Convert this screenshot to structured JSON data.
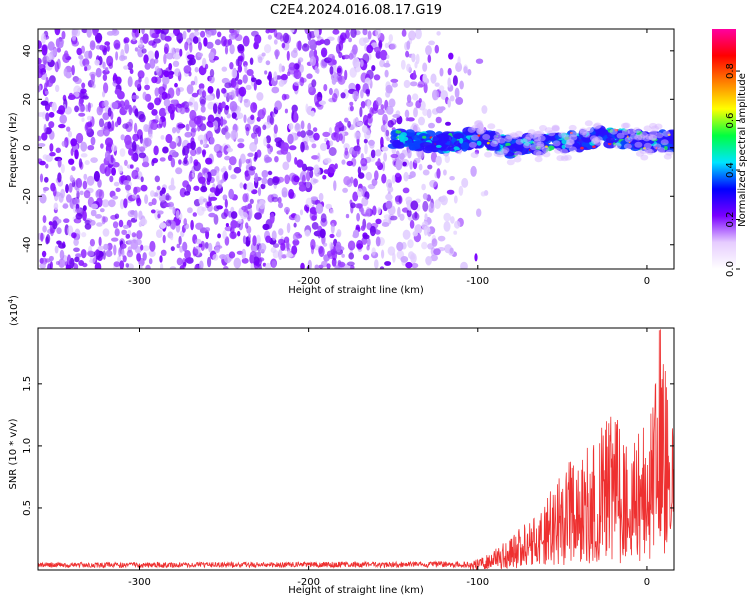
{
  "title": "C2E4.2024.016.08.17.G19",
  "chart_data": [
    {
      "type": "heatmap",
      "xlabel": "Height of straight line (km)",
      "ylabel": "Frequency (Hz)",
      "xlim": [
        -360,
        16
      ],
      "ylim": [
        -50,
        49
      ],
      "x_ticks": [
        -300,
        -200,
        -100,
        0
      ],
      "x_tick_labels": [
        "-300",
        "-200",
        "-100",
        "0"
      ],
      "y_ticks": [
        -40,
        -20,
        0,
        20,
        40
      ],
      "y_tick_labels": [
        "-40",
        "-20",
        "0",
        "20",
        "40"
      ],
      "colorbar": {
        "label": "Normalized spectral amplitude",
        "range": [
          0,
          0.97
        ],
        "ticks": [
          0.0,
          0.2,
          0.4,
          0.6,
          0.8
        ],
        "tick_labels": [
          "0.0",
          "0.2",
          "0.4",
          "0.6",
          "0.8"
        ],
        "colors": [
          "#ffffff",
          "#e6ccff",
          "#7a00ff",
          "#0000ff",
          "#00e5ff",
          "#00ff40",
          "#ffff00",
          "#ff8000",
          "#ff0000",
          "#ff00a0"
        ]
      },
      "noise_region_x": [
        -360,
        -95
      ],
      "signal_ridge": [
        {
          "x": -150,
          "y": 4
        },
        {
          "x": -120,
          "y": 2
        },
        {
          "x": -100,
          "y": 4
        },
        {
          "x": -80,
          "y": 0
        },
        {
          "x": -60,
          "y": 2
        },
        {
          "x": -40,
          "y": 3
        },
        {
          "x": -20,
          "y": 5
        },
        {
          "x": 0,
          "y": 2
        },
        {
          "x": 16,
          "y": 3
        }
      ]
    },
    {
      "type": "line",
      "xlabel": "Height of straight line (km)",
      "ylabel": "SNR (10 * v/v)",
      "multiplier_label": "(x10",
      "multiplier_exp": "4",
      "multiplier_close": ")",
      "xlim": [
        -360,
        16
      ],
      "ylim": [
        0,
        1.95
      ],
      "x_ticks": [
        -300,
        -200,
        -100,
        0
      ],
      "x_tick_labels": [
        "-300",
        "-200",
        "-100",
        "0"
      ],
      "y_ticks": [
        0.5,
        1.0,
        1.5
      ],
      "y_tick_labels": [
        "0.5",
        "1.0",
        "1.5"
      ],
      "color": "#ee3030",
      "envelope": [
        {
          "x": -360,
          "y": 0.05
        },
        {
          "x": -105,
          "y": 0.06
        },
        {
          "x": -95,
          "y": 0.12
        },
        {
          "x": -80,
          "y": 0.25
        },
        {
          "x": -60,
          "y": 0.55
        },
        {
          "x": -45,
          "y": 0.85
        },
        {
          "x": -30,
          "y": 1.05
        },
        {
          "x": -20,
          "y": 1.25
        },
        {
          "x": -10,
          "y": 0.9
        },
        {
          "x": 0,
          "y": 1.3
        },
        {
          "x": 8,
          "y": 1.95
        },
        {
          "x": 16,
          "y": 1.2
        }
      ]
    }
  ]
}
